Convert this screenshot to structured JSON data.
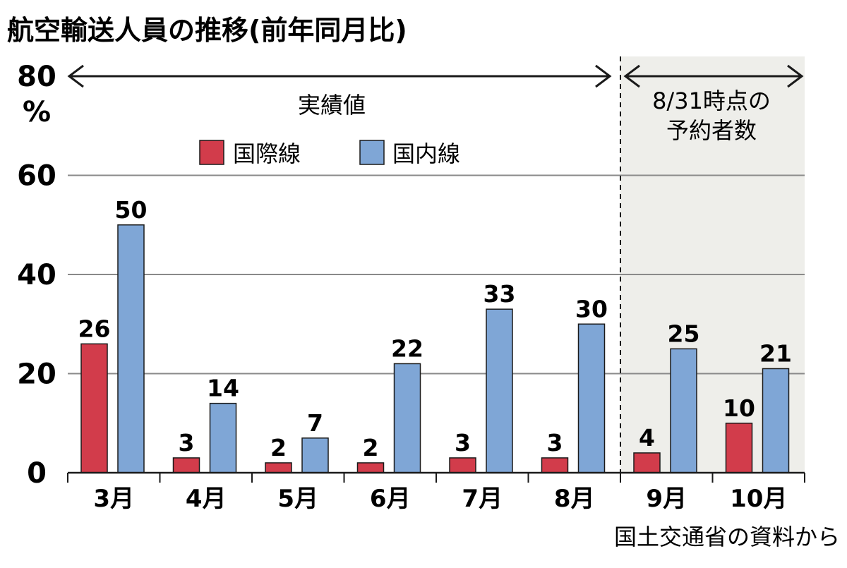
{
  "chart_data": {
    "type": "bar",
    "title": "航空輸送人員の推移(前年同月比)",
    "ylabel": "%",
    "ylim": [
      0,
      80
    ],
    "yticks": [
      "0",
      "20",
      "40",
      "60",
      "80"
    ],
    "categories": [
      "3月",
      "4月",
      "5月",
      "6月",
      "7月",
      "8月",
      "9月",
      "10月"
    ],
    "series": [
      {
        "name": "国際線",
        "color": "#d23c4b",
        "values": [
          26,
          3,
          2,
          2,
          3,
          3,
          4,
          10
        ]
      },
      {
        "name": "国内線",
        "color": "#7fa6d6",
        "values": [
          50,
          14,
          7,
          22,
          33,
          30,
          25,
          21
        ]
      }
    ],
    "grid": true,
    "legend": "top-center",
    "annotations": {
      "actual": "実績値",
      "forecast_line1": "8/31時点の",
      "forecast_line2": "予約者数"
    },
    "forecast_start_index": 6,
    "shaded_background": "#eeeeea",
    "source": "国土交通省の資料から"
  }
}
